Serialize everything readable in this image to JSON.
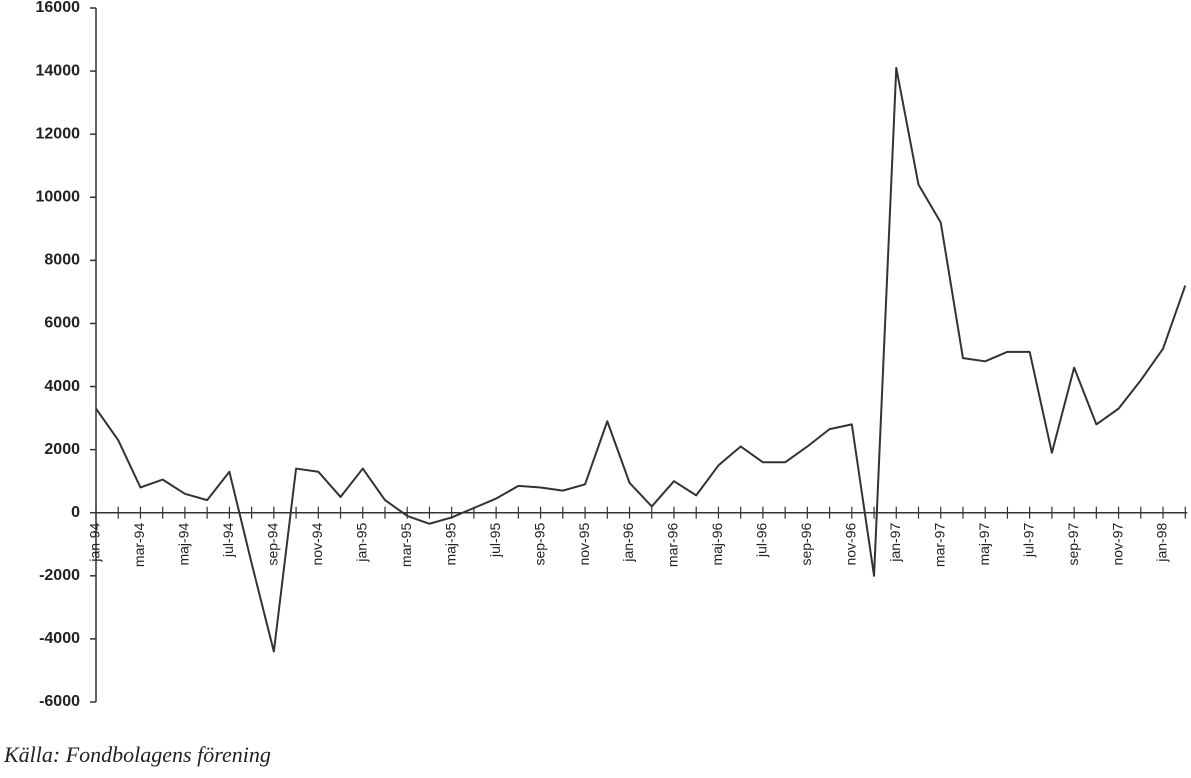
{
  "chart_data": {
    "type": "line",
    "source": "Källa: Fondbolagens förening",
    "categories": [
      "jan-94",
      null,
      "mar-94",
      null,
      "maj-94",
      null,
      "jul-94",
      null,
      "sep-94",
      null,
      "nov-94",
      null,
      "jan-95",
      null,
      "mar-95",
      null,
      "maj-95",
      null,
      "jul-95",
      null,
      "sep-95",
      null,
      "nov-95",
      null,
      "jan-96",
      null,
      "mar-96",
      null,
      "maj-96",
      null,
      "jul-96",
      null,
      "sep-96",
      null,
      "nov-96",
      null,
      "jan-97",
      null,
      "mar-97",
      null,
      "maj-97",
      null,
      "jul-97",
      null,
      "sep-97",
      null,
      "nov-97",
      null,
      "jan-98",
      null
    ],
    "series": [
      {
        "color": "#333333",
        "values": [
          3300,
          2300,
          800,
          1050,
          600,
          400,
          1300,
          -1600,
          -4400,
          1400,
          1300,
          500,
          1400,
          400,
          -100,
          -350,
          -150,
          150,
          450,
          850,
          800,
          700,
          900,
          2900,
          950,
          200,
          1000,
          550,
          1500,
          2100,
          1600,
          1600,
          2100,
          2650,
          2800,
          -2000,
          14100,
          10400,
          9200,
          4900,
          4800,
          5100,
          5100,
          1900,
          4600,
          2800,
          3300,
          4200,
          5200,
          7200
        ]
      }
    ],
    "ylim": [
      -6000,
      16000
    ],
    "yticks": [
      -6000,
      -4000,
      -2000,
      0,
      2000,
      4000,
      6000,
      8000,
      10000,
      12000,
      14000,
      16000
    ],
    "grid": false
  }
}
